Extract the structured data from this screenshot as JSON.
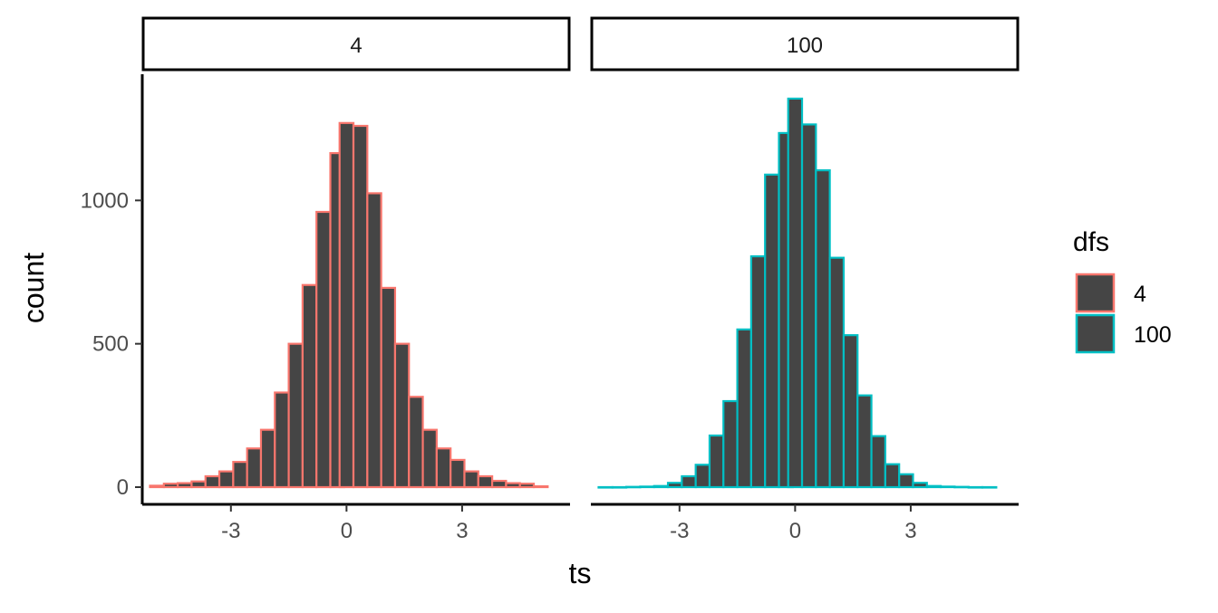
{
  "chart_data": {
    "type": "bar",
    "subtype": "faceted-histogram",
    "xlabel": "ts",
    "ylabel": "count",
    "xlim": [
      -5.3,
      5.8
    ],
    "ylim": [
      -60,
      1440
    ],
    "x_ticks": [
      -3,
      0,
      3
    ],
    "x_tick_labels": [
      "-3",
      "0",
      "3"
    ],
    "y_ticks": [
      0,
      500,
      1000
    ],
    "y_tick_labels": [
      "0",
      "500",
      "1000"
    ],
    "bin_width": 0.36,
    "grid": false,
    "legend": {
      "title": "dfs",
      "position": "right",
      "entries": [
        {
          "label": "4",
          "color": "#F8766D"
        },
        {
          "label": "100",
          "color": "#00BFC4"
        }
      ]
    },
    "fill_color": "#454545",
    "facets": [
      {
        "strip_label": "4",
        "outline_color": "#F8766D",
        "bins": [
          {
            "x": -4.92,
            "count": 5
          },
          {
            "x": -4.56,
            "count": 12
          },
          {
            "x": -4.2,
            "count": 14
          },
          {
            "x": -3.84,
            "count": 20
          },
          {
            "x": -3.48,
            "count": 38
          },
          {
            "x": -3.12,
            "count": 55
          },
          {
            "x": -2.76,
            "count": 88
          },
          {
            "x": -2.4,
            "count": 135
          },
          {
            "x": -2.04,
            "count": 200
          },
          {
            "x": -1.68,
            "count": 330
          },
          {
            "x": -1.32,
            "count": 500
          },
          {
            "x": -0.96,
            "count": 705
          },
          {
            "x": -0.6,
            "count": 960
          },
          {
            "x": -0.24,
            "count": 1165
          },
          {
            "x": 0.0,
            "count": 1270
          },
          {
            "x": 0.36,
            "count": 1260
          },
          {
            "x": 0.72,
            "count": 1025
          },
          {
            "x": 1.08,
            "count": 695
          },
          {
            "x": 1.44,
            "count": 500
          },
          {
            "x": 1.8,
            "count": 315
          },
          {
            "x": 2.16,
            "count": 200
          },
          {
            "x": 2.52,
            "count": 135
          },
          {
            "x": 2.88,
            "count": 95
          },
          {
            "x": 3.24,
            "count": 55
          },
          {
            "x": 3.6,
            "count": 38
          },
          {
            "x": 3.96,
            "count": 22
          },
          {
            "x": 4.32,
            "count": 14
          },
          {
            "x": 4.68,
            "count": 12
          },
          {
            "x": 5.04,
            "count": 3
          }
        ]
      },
      {
        "strip_label": "100",
        "outline_color": "#00BFC4",
        "bins": [
          {
            "x": -4.92,
            "count": 0
          },
          {
            "x": -4.56,
            "count": 0
          },
          {
            "x": -4.2,
            "count": 1
          },
          {
            "x": -3.84,
            "count": 2
          },
          {
            "x": -3.48,
            "count": 4
          },
          {
            "x": -3.12,
            "count": 15
          },
          {
            "x": -2.76,
            "count": 38
          },
          {
            "x": -2.4,
            "count": 78
          },
          {
            "x": -2.04,
            "count": 180
          },
          {
            "x": -1.68,
            "count": 300
          },
          {
            "x": -1.32,
            "count": 550
          },
          {
            "x": -0.96,
            "count": 805
          },
          {
            "x": -0.6,
            "count": 1090
          },
          {
            "x": -0.24,
            "count": 1235
          },
          {
            "x": 0.0,
            "count": 1355
          },
          {
            "x": 0.36,
            "count": 1265
          },
          {
            "x": 0.72,
            "count": 1105
          },
          {
            "x": 1.08,
            "count": 800
          },
          {
            "x": 1.44,
            "count": 530
          },
          {
            "x": 1.8,
            "count": 320
          },
          {
            "x": 2.16,
            "count": 178
          },
          {
            "x": 2.52,
            "count": 80
          },
          {
            "x": 2.88,
            "count": 45
          },
          {
            "x": 3.24,
            "count": 15
          },
          {
            "x": 3.6,
            "count": 4
          },
          {
            "x": 3.96,
            "count": 2
          },
          {
            "x": 4.32,
            "count": 1
          },
          {
            "x": 4.68,
            "count": 0
          },
          {
            "x": 5.04,
            "count": 0
          }
        ]
      }
    ]
  }
}
